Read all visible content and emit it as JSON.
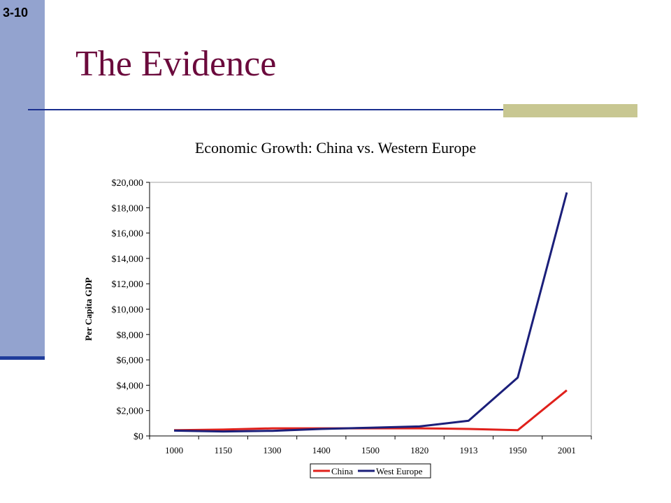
{
  "slide": {
    "number": "3-10",
    "title": "The Evidence"
  },
  "colors": {
    "title": "#6b0a3c",
    "sidebar": "#93a3cf",
    "rule": "#1a2f8f",
    "accent": "#c8c792"
  },
  "chart_data": {
    "type": "line",
    "title": "Economic Growth: China vs. Western Europe",
    "xlabel": "",
    "ylabel": "Per Capita GDP",
    "categories": [
      "1000",
      "1150",
      "1300",
      "1400",
      "1500",
      "1820",
      "1913",
      "1950",
      "2001"
    ],
    "series": [
      {
        "name": "China",
        "color": "#e0201b",
        "values": [
          450,
          500,
          600,
          600,
          600,
          600,
          550,
          450,
          3600
        ]
      },
      {
        "name": "West Europe",
        "color": "#1b1f7a",
        "values": [
          420,
          350,
          400,
          550,
          650,
          750,
          1200,
          4600,
          19200
        ]
      }
    ],
    "ylim": [
      0,
      20000
    ],
    "yticks": [
      0,
      2000,
      4000,
      6000,
      8000,
      10000,
      12000,
      14000,
      16000,
      18000,
      20000
    ],
    "ytick_labels": [
      "$0",
      "$2,000",
      "$4,000",
      "$6,000",
      "$8,000",
      "$10,000",
      "$12,000",
      "$14,000",
      "$16,000",
      "$18,000",
      "$20,000"
    ],
    "grid": false,
    "legend": "bottom"
  }
}
